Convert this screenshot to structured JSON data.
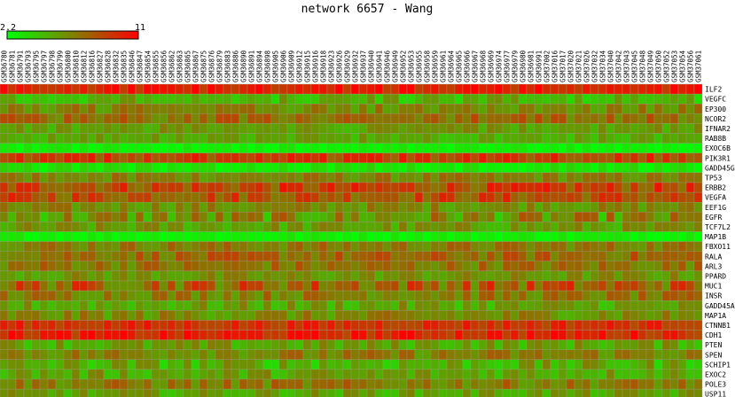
{
  "chart_data": {
    "type": "heatmap",
    "title": "network 6657 - Wang",
    "color_scale": {
      "min": 2.2,
      "max": 11,
      "min_label": "2.2",
      "max_label": "11",
      "low_color": "#00ff00",
      "mid_color": "#808000",
      "high_color": "#ff0000"
    },
    "columns": [
      "GSM36780",
      "GSM36781",
      "GSM36791",
      "GSM36793",
      "GSM36795",
      "GSM36797",
      "GSM36798",
      "GSM36799",
      "GSM36800",
      "GSM36810",
      "GSM36812",
      "GSM36816",
      "GSM36827",
      "GSM36828",
      "GSM36832",
      "GSM36835",
      "GSM36846",
      "GSM36847",
      "GSM36854",
      "GSM36855",
      "GSM36856",
      "GSM36862",
      "GSM36863",
      "GSM36865",
      "GSM36867",
      "GSM36875",
      "GSM36876",
      "GSM36879",
      "GSM36883",
      "GSM36886",
      "GSM36890",
      "GSM36891",
      "GSM36894",
      "GSM36898",
      "GSM36905",
      "GSM36906",
      "GSM36909",
      "GSM36912",
      "GSM36915",
      "GSM36916",
      "GSM36918",
      "GSM36923",
      "GSM36926",
      "GSM36929",
      "GSM36932",
      "GSM36937",
      "GSM36940",
      "GSM36941",
      "GSM36946",
      "GSM36949",
      "GSM36952",
      "GSM36953",
      "GSM36955",
      "GSM36958",
      "GSM36959",
      "GSM36961",
      "GSM36964",
      "GSM36965",
      "GSM36966",
      "GSM36967",
      "GSM36968",
      "GSM36969",
      "GSM36974",
      "GSM36977",
      "GSM36979",
      "GSM36980",
      "GSM36981",
      "GSM36991",
      "GSM37002",
      "GSM37016",
      "GSM37017",
      "GSM37020",
      "GSM37021",
      "GSM37026",
      "GSM37032",
      "GSM37034",
      "GSM37040",
      "GSM37042",
      "GSM37043",
      "GSM37045",
      "GSM37048",
      "GSM37049",
      "GSM37050",
      "GSM37052",
      "GSM37053",
      "GSM37054",
      "GSM37056",
      "GSM37061"
    ],
    "rows": [
      "ILF2",
      "VEGFC",
      "EP300",
      "NCOR2",
      "IFNAR2",
      "RAB8B",
      "EXOC6B",
      "PIK3R1",
      "GADD45G",
      "TP53",
      "ERBB2",
      "VEGFA",
      "EEF1G",
      "EGFR",
      "TCF7L2",
      "MAP1B",
      "FBXO11",
      "RALA",
      "ARL3",
      "PPARD",
      "MUC1",
      "INSR",
      "GADD45A",
      "MAP1A",
      "CTNNB1",
      "CDH1",
      "PTEN",
      "SPEN",
      "SCHIP1",
      "EXOC2",
      "POLE3",
      "USP11"
    ],
    "row_profiles": [
      {
        "gene": "ILF2",
        "mean": 10.0,
        "spread": 0.9
      },
      {
        "gene": "VEGFC",
        "mean": 4.8,
        "spread": 1.0
      },
      {
        "gene": "EP300",
        "mean": 6.4,
        "spread": 0.9
      },
      {
        "gene": "NCOR2",
        "mean": 7.2,
        "spread": 1.0
      },
      {
        "gene": "IFNAR2",
        "mean": 5.6,
        "spread": 0.8
      },
      {
        "gene": "RAB8B",
        "mean": 5.2,
        "spread": 0.8
      },
      {
        "gene": "EXOC6B",
        "mean": 2.6,
        "spread": 0.4
      },
      {
        "gene": "PIK3R1",
        "mean": 8.9,
        "spread": 1.0
      },
      {
        "gene": "GADD45G",
        "mean": 3.0,
        "spread": 0.6
      },
      {
        "gene": "TP53",
        "mean": 6.5,
        "spread": 0.9
      },
      {
        "gene": "ERBB2",
        "mean": 8.6,
        "spread": 1.3
      },
      {
        "gene": "VEGFA",
        "mean": 8.4,
        "spread": 1.2
      },
      {
        "gene": "EEF1G",
        "mean": 6.2,
        "spread": 0.9
      },
      {
        "gene": "EGFR",
        "mean": 6.0,
        "spread": 1.6
      },
      {
        "gene": "TCF7L2",
        "mean": 5.6,
        "spread": 1.0
      },
      {
        "gene": "MAP1B",
        "mean": 2.7,
        "spread": 0.4
      },
      {
        "gene": "FBXO11",
        "mean": 6.8,
        "spread": 0.9
      },
      {
        "gene": "RALA",
        "mean": 7.4,
        "spread": 1.0
      },
      {
        "gene": "ARL3",
        "mean": 7.0,
        "spread": 1.0
      },
      {
        "gene": "PPARD",
        "mean": 5.9,
        "spread": 0.8
      },
      {
        "gene": "MUC1",
        "mean": 7.8,
        "spread": 1.6
      },
      {
        "gene": "INSR",
        "mean": 6.8,
        "spread": 1.0
      },
      {
        "gene": "GADD45A",
        "mean": 5.4,
        "spread": 1.0
      },
      {
        "gene": "MAP1A",
        "mean": 6.2,
        "spread": 1.0
      },
      {
        "gene": "CTNNB1",
        "mean": 9.4,
        "spread": 0.8
      },
      {
        "gene": "CDH1",
        "mean": 9.8,
        "spread": 1.0
      },
      {
        "gene": "PTEN",
        "mean": 5.4,
        "spread": 1.0
      },
      {
        "gene": "SPEN",
        "mean": 6.6,
        "spread": 1.0
      },
      {
        "gene": "SCHIP1",
        "mean": 5.0,
        "spread": 1.2
      },
      {
        "gene": "EXOC2",
        "mean": 5.4,
        "spread": 1.0
      },
      {
        "gene": "POLE3",
        "mean": 6.8,
        "spread": 1.0
      },
      {
        "gene": "USP11",
        "mean": 5.4,
        "spread": 0.9
      }
    ]
  }
}
